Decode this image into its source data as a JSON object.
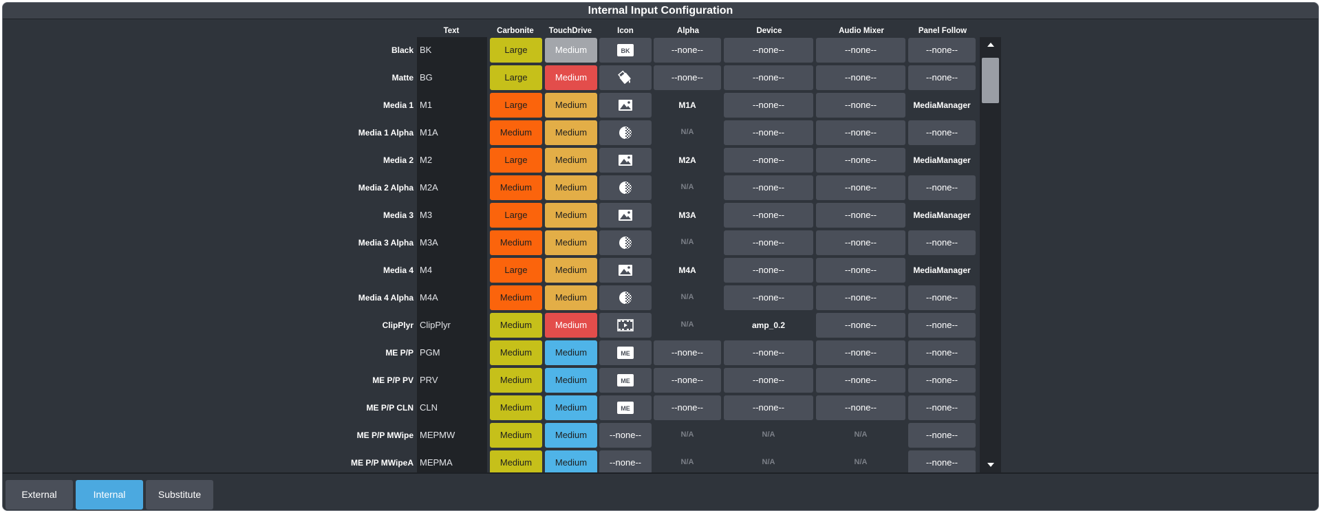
{
  "window": {
    "title": "Internal Input Configuration"
  },
  "headers": {
    "text": "Text",
    "carbonite": "Carbonite",
    "touchdrive": "TouchDrive",
    "icon": "Icon",
    "alpha": "Alpha",
    "device": "Device",
    "audio_mixer": "Audio Mixer",
    "panel_follow": "Panel Follow"
  },
  "colors": {
    "large_yellow": "#c6c01a",
    "large_orange": "#fb640c",
    "medium_gold": "#e3ae47",
    "medium_red": "#e34d4b",
    "medium_gray": "#a3a6ab",
    "medium_blue": "#4fb4e8",
    "slate": "#4a4f59",
    "active_tab": "#4ba9e0"
  },
  "rows": [
    {
      "label": "Black",
      "text": "BK",
      "carbonite": "Large",
      "carbonite_color": "yellow",
      "touchdrive": "Medium",
      "touchdrive_color": "gray",
      "icon": "bk-icon",
      "alpha": "--none--",
      "alpha_type": "button",
      "device": "--none--",
      "device_type": "button",
      "audio": "--none--",
      "audio_type": "button",
      "panel": "--none--",
      "panel_type": "button"
    },
    {
      "label": "Matte",
      "text": "BG",
      "carbonite": "Large",
      "carbonite_color": "yellow",
      "touchdrive": "Medium",
      "touchdrive_color": "red",
      "icon": "paint-bucket-icon",
      "alpha": "--none--",
      "alpha_type": "button",
      "device": "--none--",
      "device_type": "button",
      "audio": "--none--",
      "audio_type": "button",
      "panel": "--none--",
      "panel_type": "button"
    },
    {
      "label": "Media 1",
      "text": "M1",
      "carbonite": "Large",
      "carbonite_color": "orange",
      "touchdrive": "Medium",
      "touchdrive_color": "gold",
      "icon": "image-icon",
      "alpha": "M1A",
      "alpha_type": "static",
      "device": "--none--",
      "device_type": "button",
      "audio": "--none--",
      "audio_type": "button",
      "panel": "MediaManager",
      "panel_type": "static"
    },
    {
      "label": "Media 1 Alpha",
      "text": "M1A",
      "carbonite": "Medium",
      "carbonite_color": "orange",
      "touchdrive": "Medium",
      "touchdrive_color": "gold",
      "icon": "alpha-icon",
      "alpha": "N/A",
      "alpha_type": "dim",
      "device": "--none--",
      "device_type": "button",
      "audio": "--none--",
      "audio_type": "button",
      "panel": "--none--",
      "panel_type": "button"
    },
    {
      "label": "Media 2",
      "text": "M2",
      "carbonite": "Large",
      "carbonite_color": "orange",
      "touchdrive": "Medium",
      "touchdrive_color": "gold",
      "icon": "image-icon",
      "alpha": "M2A",
      "alpha_type": "static",
      "device": "--none--",
      "device_type": "button",
      "audio": "--none--",
      "audio_type": "button",
      "panel": "MediaManager",
      "panel_type": "static"
    },
    {
      "label": "Media 2 Alpha",
      "text": "M2A",
      "carbonite": "Medium",
      "carbonite_color": "orange",
      "touchdrive": "Medium",
      "touchdrive_color": "gold",
      "icon": "alpha-icon",
      "alpha": "N/A",
      "alpha_type": "dim",
      "device": "--none--",
      "device_type": "button",
      "audio": "--none--",
      "audio_type": "button",
      "panel": "--none--",
      "panel_type": "button"
    },
    {
      "label": "Media 3",
      "text": "M3",
      "carbonite": "Large",
      "carbonite_color": "orange",
      "touchdrive": "Medium",
      "touchdrive_color": "gold",
      "icon": "image-icon",
      "alpha": "M3A",
      "alpha_type": "static",
      "device": "--none--",
      "device_type": "button",
      "audio": "--none--",
      "audio_type": "button",
      "panel": "MediaManager",
      "panel_type": "static"
    },
    {
      "label": "Media 3 Alpha",
      "text": "M3A",
      "carbonite": "Medium",
      "carbonite_color": "orange",
      "touchdrive": "Medium",
      "touchdrive_color": "gold",
      "icon": "alpha-icon",
      "alpha": "N/A",
      "alpha_type": "dim",
      "device": "--none--",
      "device_type": "button",
      "audio": "--none--",
      "audio_type": "button",
      "panel": "--none--",
      "panel_type": "button"
    },
    {
      "label": "Media 4",
      "text": "M4",
      "carbonite": "Large",
      "carbonite_color": "orange",
      "touchdrive": "Medium",
      "touchdrive_color": "gold",
      "icon": "image-icon",
      "alpha": "M4A",
      "alpha_type": "static",
      "device": "--none--",
      "device_type": "button",
      "audio": "--none--",
      "audio_type": "button",
      "panel": "MediaManager",
      "panel_type": "static"
    },
    {
      "label": "Media 4 Alpha",
      "text": "M4A",
      "carbonite": "Medium",
      "carbonite_color": "orange",
      "touchdrive": "Medium",
      "touchdrive_color": "gold",
      "icon": "alpha-icon",
      "alpha": "N/A",
      "alpha_type": "dim",
      "device": "--none--",
      "device_type": "button",
      "audio": "--none--",
      "audio_type": "button",
      "panel": "--none--",
      "panel_type": "button"
    },
    {
      "label": "ClipPlyr",
      "text": "ClipPlyr",
      "carbonite": "Medium",
      "carbonite_color": "yellow",
      "touchdrive": "Medium",
      "touchdrive_color": "red",
      "icon": "film-play-icon",
      "alpha": "N/A",
      "alpha_type": "dim",
      "device": "amp_0.2",
      "device_type": "static",
      "audio": "--none--",
      "audio_type": "button",
      "panel": "--none--",
      "panel_type": "button"
    },
    {
      "label": "ME P/P",
      "text": "PGM",
      "carbonite": "Medium",
      "carbonite_color": "yellow",
      "touchdrive": "Medium",
      "touchdrive_color": "blue",
      "icon": "me-icon",
      "alpha": "--none--",
      "alpha_type": "button",
      "device": "--none--",
      "device_type": "button",
      "audio": "--none--",
      "audio_type": "button",
      "panel": "--none--",
      "panel_type": "button"
    },
    {
      "label": "ME P/P PV",
      "text": "PRV",
      "carbonite": "Medium",
      "carbonite_color": "yellow",
      "touchdrive": "Medium",
      "touchdrive_color": "blue",
      "icon": "me-icon",
      "alpha": "--none--",
      "alpha_type": "button",
      "device": "--none--",
      "device_type": "button",
      "audio": "--none--",
      "audio_type": "button",
      "panel": "--none--",
      "panel_type": "button"
    },
    {
      "label": "ME P/P CLN",
      "text": "CLN",
      "carbonite": "Medium",
      "carbonite_color": "yellow",
      "touchdrive": "Medium",
      "touchdrive_color": "blue",
      "icon": "me-icon",
      "alpha": "--none--",
      "alpha_type": "button",
      "device": "--none--",
      "device_type": "button",
      "audio": "--none--",
      "audio_type": "button",
      "panel": "--none--",
      "panel_type": "button"
    },
    {
      "label": "ME P/P MWipe",
      "text": "MEPMW",
      "carbonite": "Medium",
      "carbonite_color": "yellow",
      "touchdrive": "Medium",
      "touchdrive_color": "blue",
      "icon": "",
      "icon_text": "--none--",
      "alpha": "N/A",
      "alpha_type": "dim",
      "device": "N/A",
      "device_type": "dim",
      "audio": "N/A",
      "audio_type": "dim",
      "panel": "--none--",
      "panel_type": "button"
    },
    {
      "label": "ME P/P MWipeA",
      "text": "MEPMA",
      "carbonite": "Medium",
      "carbonite_color": "yellow",
      "touchdrive": "Medium",
      "touchdrive_color": "blue",
      "icon": "",
      "icon_text": "--none--",
      "alpha": "N/A",
      "alpha_type": "dim",
      "device": "N/A",
      "device_type": "dim",
      "audio": "N/A",
      "audio_type": "dim",
      "panel": "--none--",
      "panel_type": "button"
    }
  ],
  "tabs": [
    {
      "label": "External",
      "active": false
    },
    {
      "label": "Internal",
      "active": true
    },
    {
      "label": "Substitute",
      "active": false
    }
  ]
}
